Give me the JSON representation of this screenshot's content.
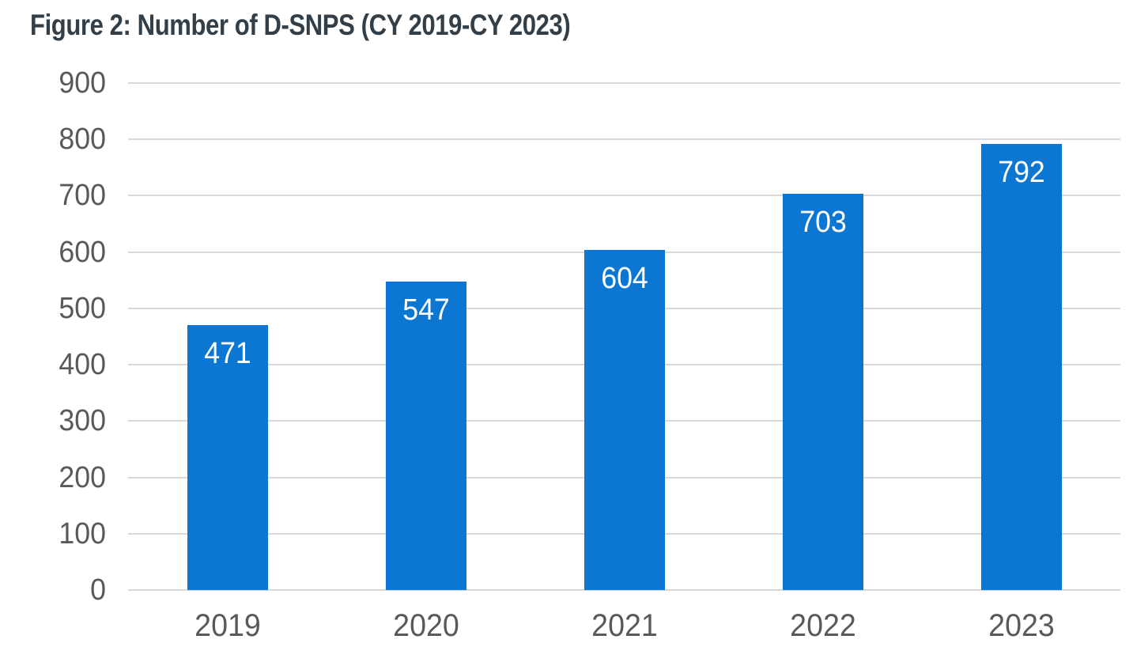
{
  "page": {
    "title": "Figure 2: Number of D-SNPS (CY 2019-CY 2023)"
  },
  "chart_data": {
    "type": "bar",
    "title": "Figure 2: Number of D-SNPS (CY 2019-CY 2023)",
    "categories": [
      "2019",
      "2020",
      "2021",
      "2022",
      "2023"
    ],
    "values": [
      471,
      547,
      604,
      703,
      792
    ],
    "bar_value_labels": [
      "471",
      "547",
      "604",
      "703",
      "792"
    ],
    "xlabel": "",
    "ylabel": "",
    "ylim": [
      0,
      900
    ],
    "yticks": [
      0,
      100,
      200,
      300,
      400,
      500,
      600,
      700,
      800,
      900
    ],
    "grid": true,
    "legend": false,
    "value_labels_position": "inside-top",
    "colors": {
      "bar": "#0b77d2",
      "value_label": "#ffffff",
      "axis_text": "#595959",
      "gridline": "#d9d9d9",
      "title_text": "#333f48",
      "background": "#ffffff"
    }
  }
}
